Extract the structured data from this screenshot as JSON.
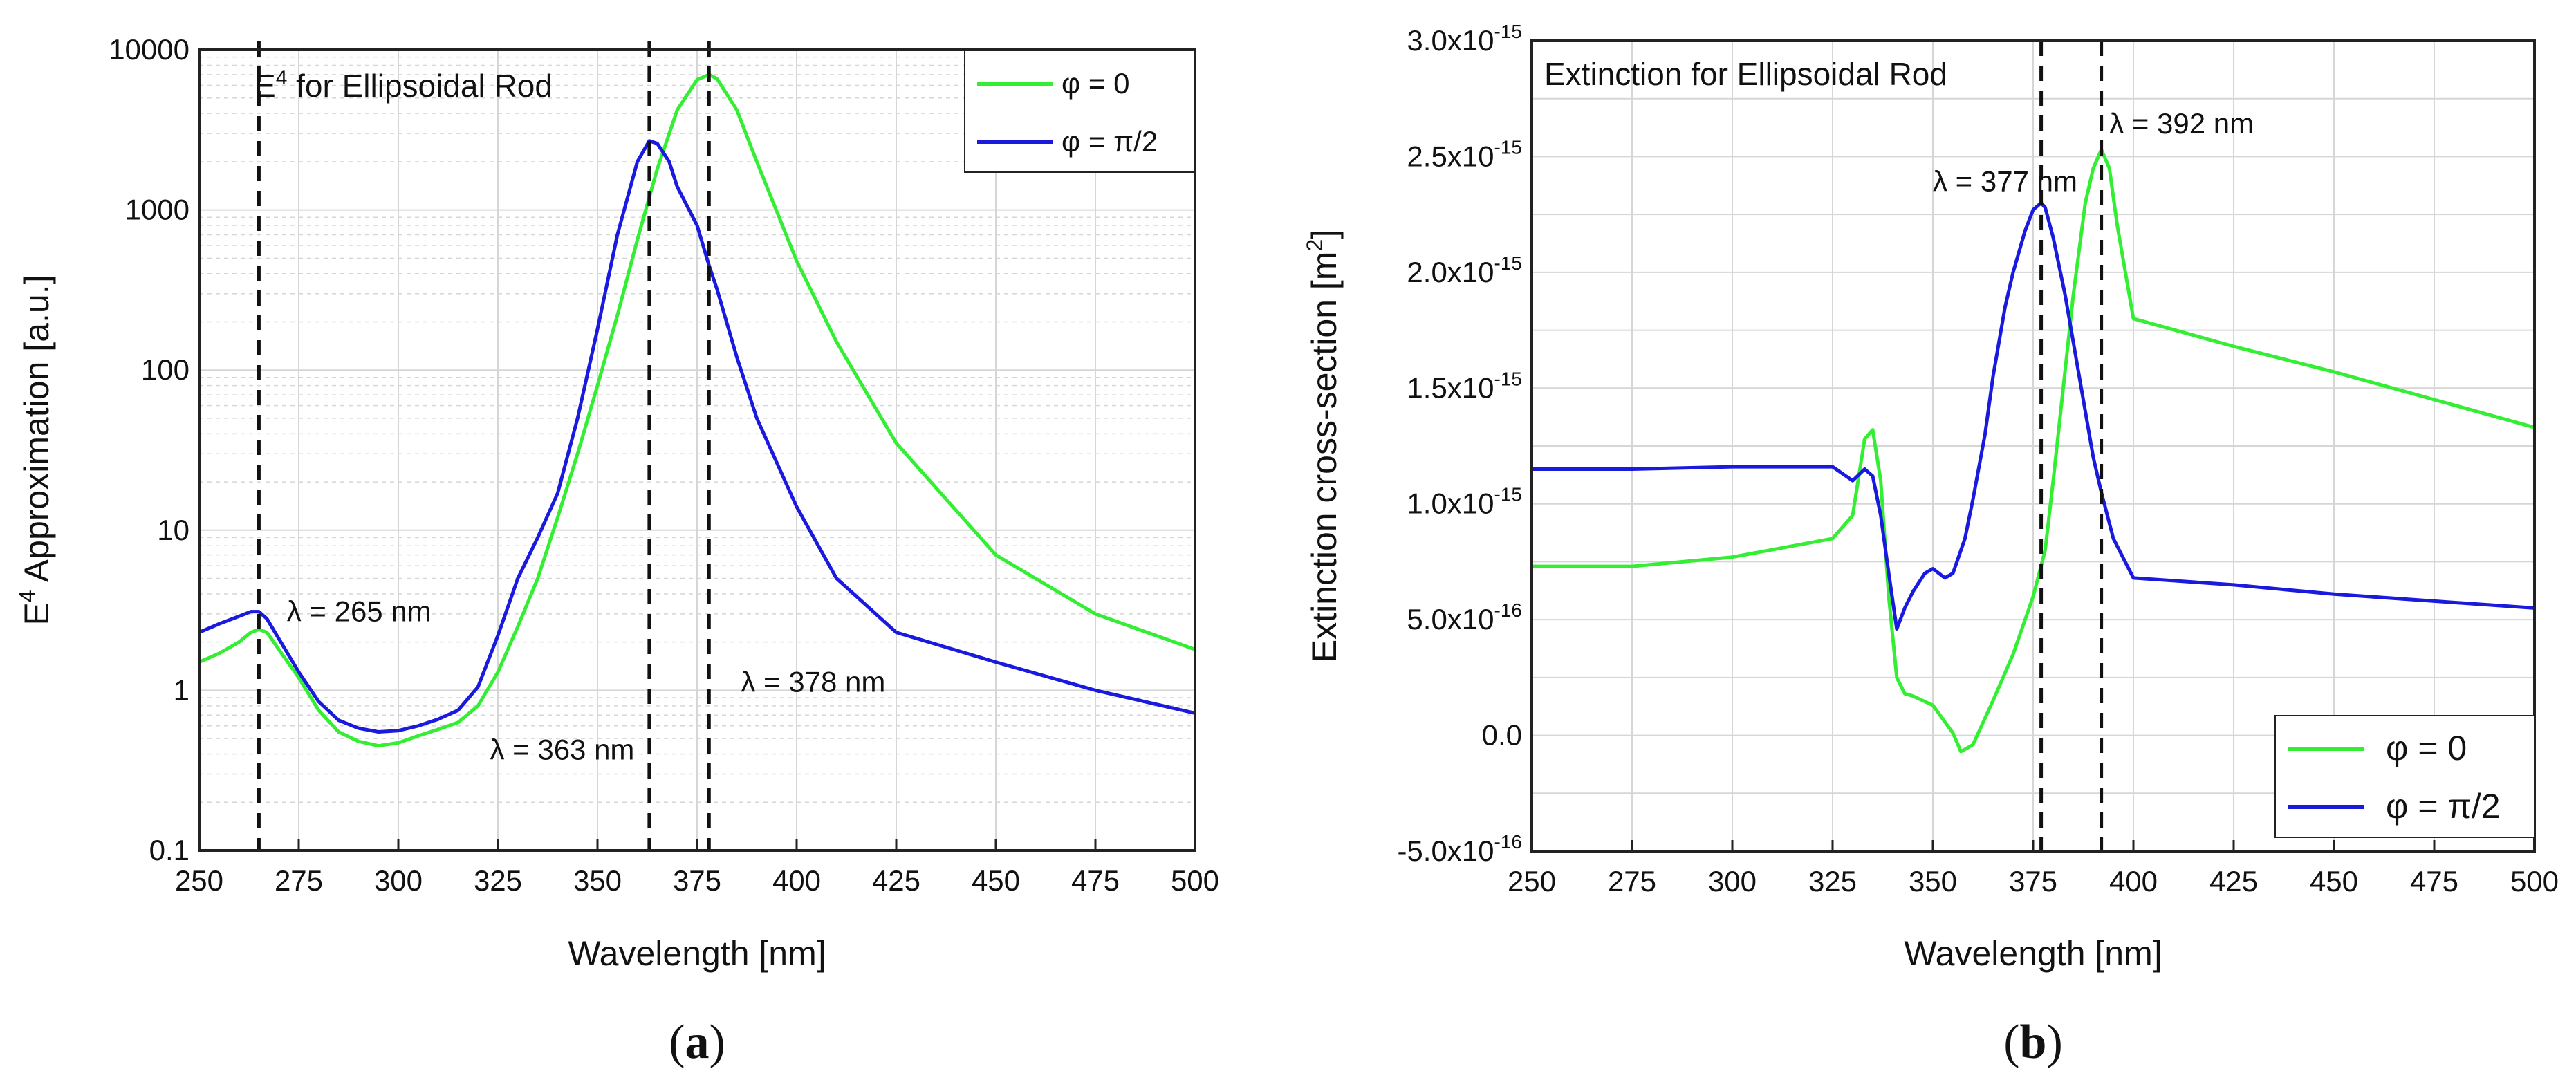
{
  "colors": {
    "phi0": "#33ee33",
    "phi90": "#1a1adf",
    "grid": "#d6d6d6",
    "axis": "#222222"
  },
  "chart_data": [
    {
      "type": "line",
      "panel_label": "(a)",
      "title": "E⁴ for Ellipsoidal Rod",
      "xlabel": "Wavelength [nm]",
      "ylabel": "E⁴ Approximation [a.u.]",
      "xlim": [
        250,
        500
      ],
      "ylim": [
        0.1,
        10000
      ],
      "yscale": "log",
      "legend_position": "top-right",
      "x_ticks": [
        250,
        275,
        300,
        325,
        350,
        375,
        400,
        425,
        450,
        475,
        500
      ],
      "x_tick_labels": [
        "250",
        "275",
        "300",
        "325",
        "350",
        "375",
        "400",
        "425",
        "450",
        "475",
        "500"
      ],
      "y_ticks": [
        0.1,
        1,
        10,
        100,
        1000,
        10000
      ],
      "y_tick_labels": [
        "0.1",
        "1",
        "10",
        "100",
        "1000",
        "10000"
      ],
      "vlines": [
        265,
        363,
        378
      ],
      "annotations": [
        {
          "text": "λ = 265 nm",
          "x": 272,
          "y": 2.7
        },
        {
          "text": "λ = 363 nm",
          "x": 323,
          "y": 0.37
        },
        {
          "text": "λ = 378 nm",
          "x": 386,
          "y": 0.98
        }
      ],
      "series": [
        {
          "name": "φ = 0",
          "color": "#33ee33",
          "x": [
            250,
            255,
            260,
            263,
            265,
            267,
            270,
            275,
            280,
            285,
            290,
            295,
            300,
            305,
            310,
            315,
            320,
            325,
            330,
            335,
            340,
            345,
            350,
            355,
            360,
            365,
            370,
            375,
            378,
            380,
            385,
            390,
            400,
            410,
            425,
            450,
            475,
            500
          ],
          "y": [
            1.5,
            1.7,
            2.0,
            2.3,
            2.4,
            2.3,
            1.8,
            1.2,
            0.75,
            0.55,
            0.48,
            0.45,
            0.47,
            0.52,
            0.57,
            0.63,
            0.8,
            1.3,
            2.5,
            5,
            12,
            30,
            80,
            220,
            650,
            1800,
            4200,
            6500,
            7000,
            6600,
            4200,
            2000,
            480,
            150,
            35,
            7,
            3,
            1.8
          ]
        },
        {
          "name": "φ = π/2",
          "color": "#1a1adf",
          "x": [
            250,
            255,
            260,
            263,
            265,
            267,
            270,
            275,
            280,
            285,
            290,
            295,
            300,
            305,
            310,
            315,
            320,
            325,
            330,
            335,
            340,
            345,
            350,
            355,
            360,
            363,
            365,
            368,
            370,
            375,
            378,
            380,
            385,
            390,
            400,
            410,
            425,
            450,
            475,
            500
          ],
          "y": [
            2.3,
            2.6,
            2.9,
            3.1,
            3.1,
            2.8,
            2.1,
            1.3,
            0.85,
            0.65,
            0.58,
            0.55,
            0.56,
            0.6,
            0.66,
            0.75,
            1.05,
            2.2,
            5,
            9,
            17,
            50,
            180,
            700,
            2000,
            2700,
            2600,
            2000,
            1400,
            800,
            450,
            320,
            120,
            50,
            14,
            5,
            2.3,
            1.5,
            1.0,
            0.72
          ]
        }
      ]
    },
    {
      "type": "line",
      "panel_label": "(b)",
      "title": "Extinction for Ellipsoidal Rod",
      "xlabel": "Wavelength [nm]",
      "ylabel": "Extinction cross-section [m²]",
      "xlim": [
        250,
        500
      ],
      "ylim": [
        -5e-16,
        3e-15
      ],
      "yscale": "linear",
      "legend_position": "bottom-right",
      "x_ticks": [
        250,
        275,
        300,
        325,
        350,
        375,
        400,
        425,
        450,
        475,
        500
      ],
      "x_tick_labels": [
        "250",
        "275",
        "300",
        "325",
        "350",
        "375",
        "400",
        "425",
        "450",
        "475",
        "500"
      ],
      "y_ticks": [
        -5e-16,
        0,
        5e-16,
        1e-15,
        1.5e-15,
        2e-15,
        2.5e-15,
        3e-15
      ],
      "y_tick_labels": [
        {
          "mantissa": "-5.0x10",
          "exp": "-16"
        },
        {
          "mantissa": "0.0",
          "exp": ""
        },
        {
          "mantissa": "5.0x10",
          "exp": "-16"
        },
        {
          "mantissa": "1.0x10",
          "exp": "-15"
        },
        {
          "mantissa": "1.5x10",
          "exp": "-15"
        },
        {
          "mantissa": "2.0x10",
          "exp": "-15"
        },
        {
          "mantissa": "2.5x10",
          "exp": "-15"
        },
        {
          "mantissa": "3.0x10",
          "exp": "-15"
        }
      ],
      "vlines": [
        377,
        392
      ],
      "annotations": [
        {
          "text": "λ = 377 nm",
          "x": 350,
          "y": 2.35e-15
        },
        {
          "text": "λ = 392 nm",
          "x": 394,
          "y": 2.6e-15
        }
      ],
      "series": [
        {
          "name": "φ = 0",
          "color": "#33ee33",
          "x": [
            250,
            275,
            300,
            325,
            330,
            333,
            335,
            337,
            339,
            341,
            343,
            345,
            350,
            355,
            357,
            360,
            365,
            370,
            375,
            378,
            380,
            385,
            388,
            390,
            392,
            394,
            396,
            400,
            425,
            450,
            475,
            500
          ],
          "y": [
            7.3e-16,
            7.3e-16,
            7.7e-16,
            8.5e-16,
            9.5e-16,
            1.28e-15,
            1.32e-15,
            1.1e-15,
            6e-16,
            2.5e-16,
            1.8e-16,
            1.7e-16,
            1.3e-16,
            1e-17,
            -7e-17,
            -4e-17,
            1.5e-16,
            3.5e-16,
            6e-16,
            8e-16,
            1.1e-15,
            1.9e-15,
            2.3e-15,
            2.45e-15,
            2.53e-15,
            2.45e-15,
            2.2e-15,
            1.8e-15,
            1.68e-15,
            1.57e-15,
            1.45e-15,
            1.33e-15
          ]
        },
        {
          "name": "φ = π/2",
          "color": "#1a1adf",
          "x": [
            250,
            275,
            300,
            325,
            330,
            333,
            335,
            337,
            339,
            341,
            343,
            345,
            348,
            350,
            353,
            355,
            358,
            360,
            363,
            365,
            368,
            370,
            373,
            375,
            377,
            378,
            380,
            383,
            385,
            388,
            390,
            392,
            395,
            400,
            425,
            450,
            475,
            500
          ],
          "y": [
            1.15e-15,
            1.15e-15,
            1.16e-15,
            1.16e-15,
            1.1e-15,
            1.15e-15,
            1.12e-15,
            9.5e-16,
            7e-16,
            4.6e-16,
            5.5e-16,
            6.2e-16,
            7e-16,
            7.2e-16,
            6.8e-16,
            7e-16,
            8.5e-16,
            1.02e-15,
            1.3e-15,
            1.55e-15,
            1.85e-15,
            2e-15,
            2.18e-15,
            2.27e-15,
            2.3e-15,
            2.28e-15,
            2.15e-15,
            1.9e-15,
            1.7e-15,
            1.4e-15,
            1.2e-15,
            1.05e-15,
            8.5e-16,
            6.8e-16,
            6.5e-16,
            6.1e-16,
            5.8e-16,
            5.5e-16
          ]
        }
      ]
    }
  ]
}
